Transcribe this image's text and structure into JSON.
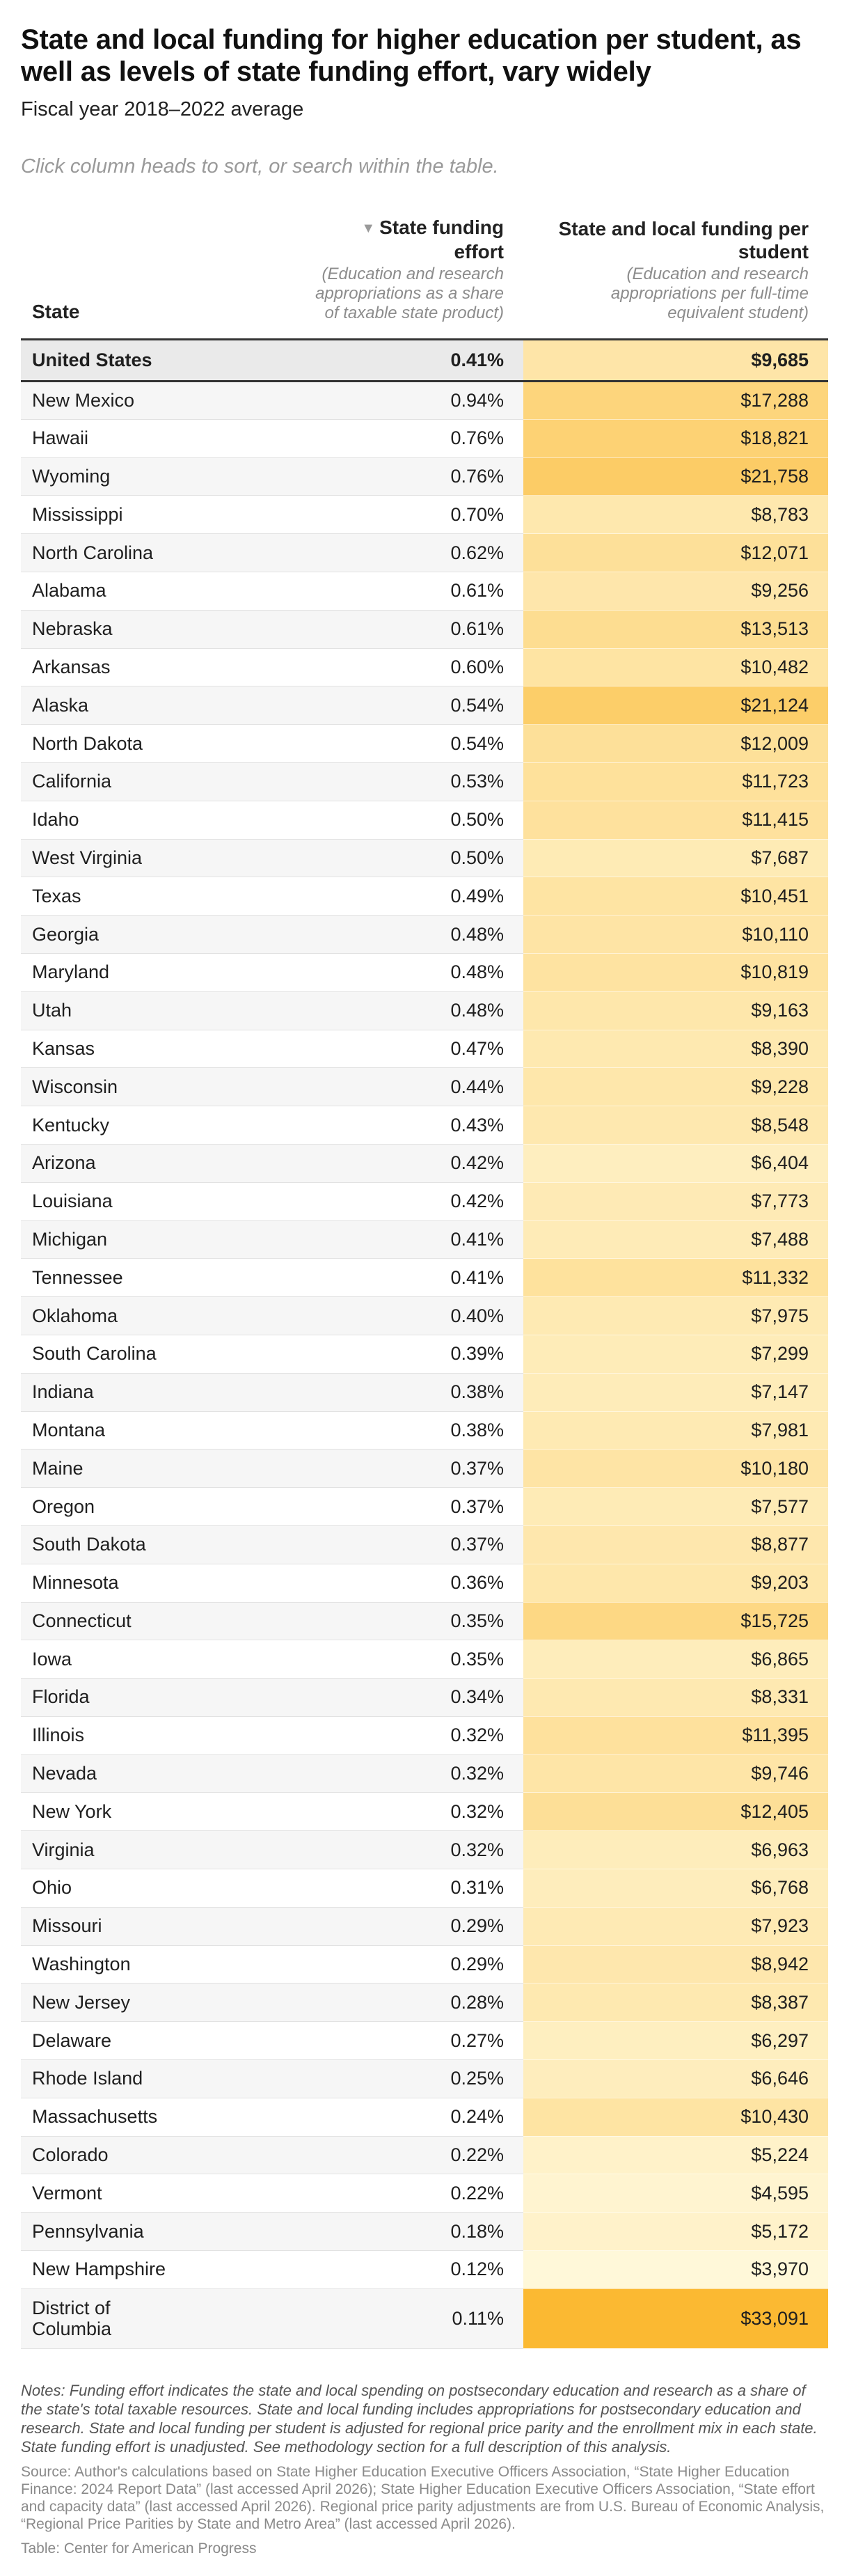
{
  "title": "State and local funding for higher education per student, as well as levels of state funding effort, vary widely",
  "subtitle": "Fiscal year 2018–2022 average",
  "search_hint": "Click column heads to sort, or search within the table.",
  "sort_indicator": "▼",
  "sort_icon": "sort-descending-icon",
  "chart_data": {
    "type": "table",
    "title": "State and local funding for higher education per student, as well as levels of state funding effort, vary widely",
    "subtitle": "Fiscal year 2018–2022 average",
    "columns": [
      {
        "label": "State",
        "description": ""
      },
      {
        "label": "State funding effort",
        "description": "(Education and research appropriations as a share of taxable state product)"
      },
      {
        "label": "State and local funding per student",
        "description": "(Education and research appropriations per full-time equivalent student)"
      }
    ],
    "sorted_by": "State funding effort",
    "sort_order": "descending",
    "color_scale": {
      "column": "State and local funding per student",
      "low_color": "#fff8d9",
      "high_color": "#fbb932",
      "min": 3970,
      "max": 33091
    },
    "summary_row": {
      "state": "United States",
      "effort": "0.41%",
      "funding": "$9,685",
      "funding_value": 9685
    },
    "rows": [
      {
        "state": "New Mexico",
        "effort": "0.94%",
        "funding": "$17,288",
        "funding_value": 17288
      },
      {
        "state": "Hawaii",
        "effort": "0.76%",
        "funding": "$18,821",
        "funding_value": 18821
      },
      {
        "state": "Wyoming",
        "effort": "0.76%",
        "funding": "$21,758",
        "funding_value": 21758
      },
      {
        "state": "Mississippi",
        "effort": "0.70%",
        "funding": "$8,783",
        "funding_value": 8783
      },
      {
        "state": "North Carolina",
        "effort": "0.62%",
        "funding": "$12,071",
        "funding_value": 12071
      },
      {
        "state": "Alabama",
        "effort": "0.61%",
        "funding": "$9,256",
        "funding_value": 9256
      },
      {
        "state": "Nebraska",
        "effort": "0.61%",
        "funding": "$13,513",
        "funding_value": 13513
      },
      {
        "state": "Arkansas",
        "effort": "0.60%",
        "funding": "$10,482",
        "funding_value": 10482
      },
      {
        "state": "Alaska",
        "effort": "0.54%",
        "funding": "$21,124",
        "funding_value": 21124
      },
      {
        "state": "North Dakota",
        "effort": "0.54%",
        "funding": "$12,009",
        "funding_value": 12009
      },
      {
        "state": "California",
        "effort": "0.53%",
        "funding": "$11,723",
        "funding_value": 11723
      },
      {
        "state": "Idaho",
        "effort": "0.50%",
        "funding": "$11,415",
        "funding_value": 11415
      },
      {
        "state": "West Virginia",
        "effort": "0.50%",
        "funding": "$7,687",
        "funding_value": 7687
      },
      {
        "state": "Texas",
        "effort": "0.49%",
        "funding": "$10,451",
        "funding_value": 10451
      },
      {
        "state": "Georgia",
        "effort": "0.48%",
        "funding": "$10,110",
        "funding_value": 10110
      },
      {
        "state": "Maryland",
        "effort": "0.48%",
        "funding": "$10,819",
        "funding_value": 10819
      },
      {
        "state": "Utah",
        "effort": "0.48%",
        "funding": "$9,163",
        "funding_value": 9163
      },
      {
        "state": "Kansas",
        "effort": "0.47%",
        "funding": "$8,390",
        "funding_value": 8390
      },
      {
        "state": "Wisconsin",
        "effort": "0.44%",
        "funding": "$9,228",
        "funding_value": 9228
      },
      {
        "state": "Kentucky",
        "effort": "0.43%",
        "funding": "$8,548",
        "funding_value": 8548
      },
      {
        "state": "Arizona",
        "effort": "0.42%",
        "funding": "$6,404",
        "funding_value": 6404
      },
      {
        "state": "Louisiana",
        "effort": "0.42%",
        "funding": "$7,773",
        "funding_value": 7773
      },
      {
        "state": "Michigan",
        "effort": "0.41%",
        "funding": "$7,488",
        "funding_value": 7488
      },
      {
        "state": "Tennessee",
        "effort": "0.41%",
        "funding": "$11,332",
        "funding_value": 11332
      },
      {
        "state": "Oklahoma",
        "effort": "0.40%",
        "funding": "$7,975",
        "funding_value": 7975
      },
      {
        "state": "South Carolina",
        "effort": "0.39%",
        "funding": "$7,299",
        "funding_value": 7299
      },
      {
        "state": "Indiana",
        "effort": "0.38%",
        "funding": "$7,147",
        "funding_value": 7147
      },
      {
        "state": "Montana",
        "effort": "0.38%",
        "funding": "$7,981",
        "funding_value": 7981
      },
      {
        "state": "Maine",
        "effort": "0.37%",
        "funding": "$10,180",
        "funding_value": 10180
      },
      {
        "state": "Oregon",
        "effort": "0.37%",
        "funding": "$7,577",
        "funding_value": 7577
      },
      {
        "state": "South Dakota",
        "effort": "0.37%",
        "funding": "$8,877",
        "funding_value": 8877
      },
      {
        "state": "Minnesota",
        "effort": "0.36%",
        "funding": "$9,203",
        "funding_value": 9203
      },
      {
        "state": "Connecticut",
        "effort": "0.35%",
        "funding": "$15,725",
        "funding_value": 15725
      },
      {
        "state": "Iowa",
        "effort": "0.35%",
        "funding": "$6,865",
        "funding_value": 6865
      },
      {
        "state": "Florida",
        "effort": "0.34%",
        "funding": "$8,331",
        "funding_value": 8331
      },
      {
        "state": "Illinois",
        "effort": "0.32%",
        "funding": "$11,395",
        "funding_value": 11395
      },
      {
        "state": "Nevada",
        "effort": "0.32%",
        "funding": "$9,746",
        "funding_value": 9746
      },
      {
        "state": "New York",
        "effort": "0.32%",
        "funding": "$12,405",
        "funding_value": 12405
      },
      {
        "state": "Virginia",
        "effort": "0.32%",
        "funding": "$6,963",
        "funding_value": 6963
      },
      {
        "state": "Ohio",
        "effort": "0.31%",
        "funding": "$6,768",
        "funding_value": 6768
      },
      {
        "state": "Missouri",
        "effort": "0.29%",
        "funding": "$7,923",
        "funding_value": 7923
      },
      {
        "state": "Washington",
        "effort": "0.29%",
        "funding": "$8,942",
        "funding_value": 8942
      },
      {
        "state": "New Jersey",
        "effort": "0.28%",
        "funding": "$8,387",
        "funding_value": 8387
      },
      {
        "state": "Delaware",
        "effort": "0.27%",
        "funding": "$6,297",
        "funding_value": 6297
      },
      {
        "state": "Rhode Island",
        "effort": "0.25%",
        "funding": "$6,646",
        "funding_value": 6646
      },
      {
        "state": "Massachusetts",
        "effort": "0.24%",
        "funding": "$10,430",
        "funding_value": 10430
      },
      {
        "state": "Colorado",
        "effort": "0.22%",
        "funding": "$5,224",
        "funding_value": 5224
      },
      {
        "state": "Vermont",
        "effort": "0.22%",
        "funding": "$4,595",
        "funding_value": 4595
      },
      {
        "state": "Pennsylvania",
        "effort": "0.18%",
        "funding": "$5,172",
        "funding_value": 5172
      },
      {
        "state": "New Hampshire",
        "effort": "0.12%",
        "funding": "$3,970",
        "funding_value": 3970
      },
      {
        "state": "District of Columbia",
        "effort": "0.11%",
        "funding": "$33,091",
        "funding_value": 33091
      }
    ]
  },
  "notes": "Notes: Funding effort indicates the state and local spending on postsecondary education and research as a share of the state's total taxable resources. State and local funding includes appropriations for postsecondary education and research. State and local funding per student is adjusted for regional price parity and the enrollment mix in each state. State funding effort is unadjusted. See methodology section for a full description of this analysis.",
  "source": "Source: Author's calculations based on State Higher Education Executive Officers Association, “State Higher Education Finance: 2024 Report Data” (last accessed April 2026); State Higher Education Executive Officers Association, “State effort and capacity data” (last accessed April 2026). Regional price parity adjustments are from U.S. Bureau of Economic Analysis, “Regional Price Parities by State and Metro Area” (last accessed April 2026).",
  "credit": "Table: Center for American Progress"
}
